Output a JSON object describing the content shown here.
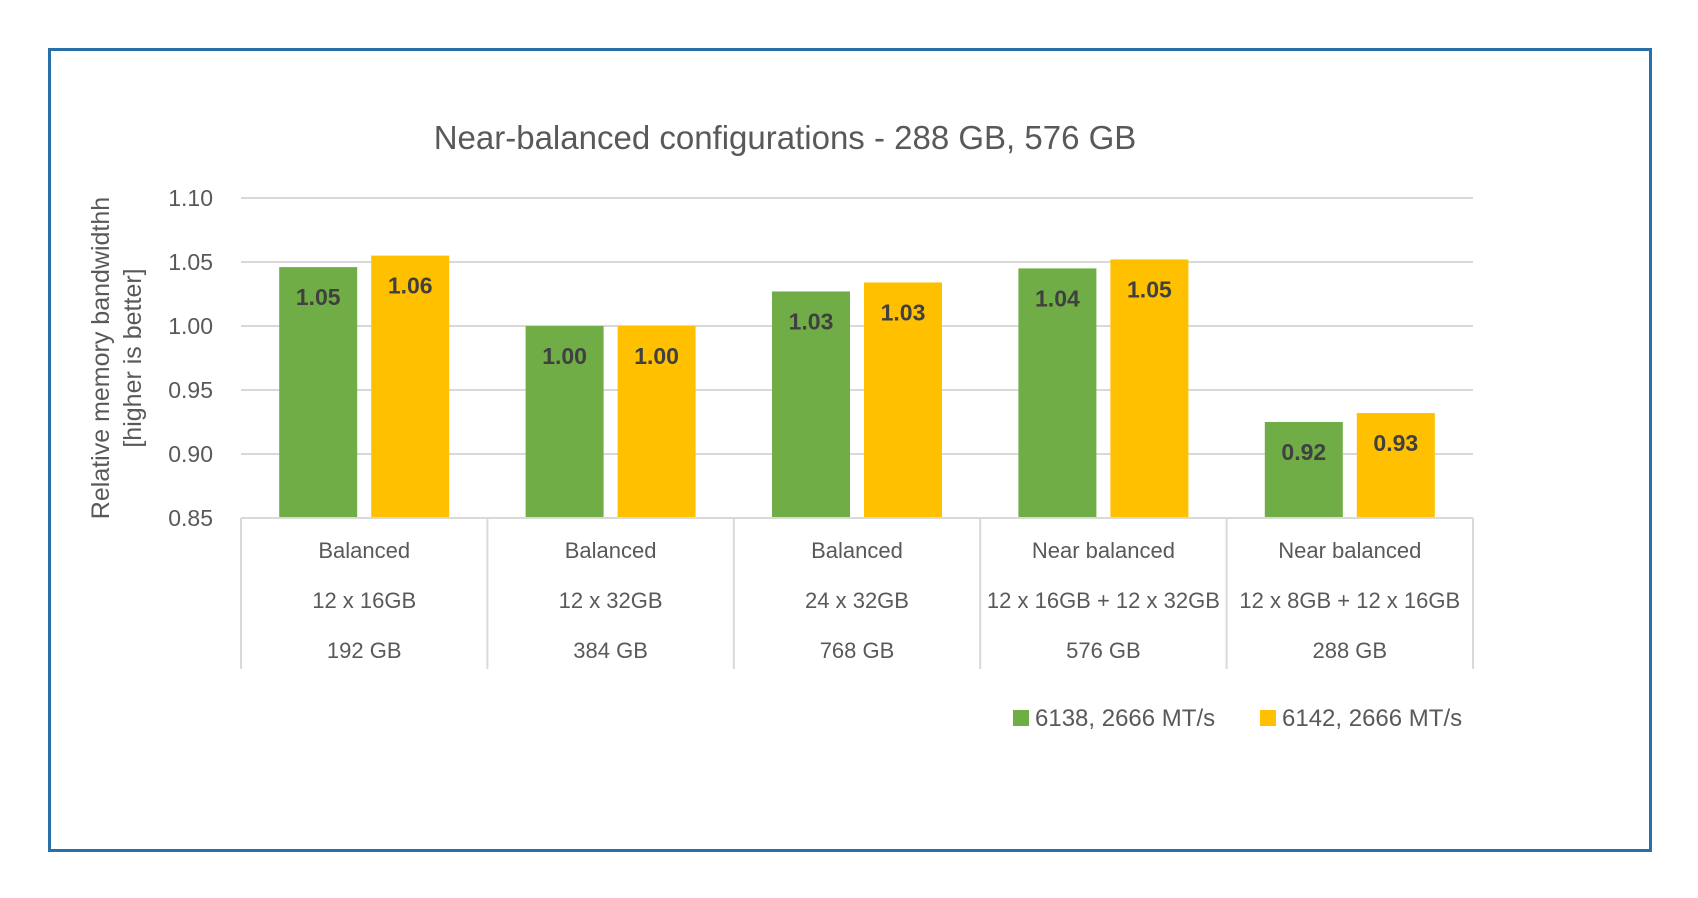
{
  "chart_data": {
    "type": "bar",
    "title": "Near-balanced configurations - 288 GB, 576 GB",
    "ylabel_lines": [
      "Relative memory bandwidthh",
      "[higher is better]"
    ],
    "ylim": [
      0.85,
      1.1
    ],
    "yticks": [
      "0.85",
      "0.90",
      "0.95",
      "1.00",
      "1.05",
      "1.10"
    ],
    "grid": true,
    "legend_position": "bottom-right",
    "categories": [
      {
        "lines": [
          "Balanced",
          "12 x 16GB",
          "192 GB"
        ]
      },
      {
        "lines": [
          "Balanced",
          "12 x 32GB",
          "384 GB"
        ]
      },
      {
        "lines": [
          "Balanced",
          "24 x 32GB",
          "768 GB"
        ]
      },
      {
        "lines": [
          "Near balanced",
          "12 x 16GB + 12 x 32GB",
          "576 GB"
        ]
      },
      {
        "lines": [
          "Near balanced",
          "12 x 8GB + 12 x 16GB",
          "288 GB"
        ]
      }
    ],
    "series": [
      {
        "name": "6138, 2666 MT/s",
        "color": "#70ad47",
        "values": [
          1.046,
          1.0,
          1.027,
          1.045,
          0.925
        ],
        "labels": [
          "1.05",
          "1.00",
          "1.03",
          "1.04",
          "0.92"
        ]
      },
      {
        "name": "6142, 2666 MT/s",
        "color": "#ffc000",
        "values": [
          1.055,
          1.0,
          1.034,
          1.052,
          0.932
        ],
        "labels": [
          "1.06",
          "1.00",
          "1.03",
          "1.05",
          "0.93"
        ]
      }
    ]
  }
}
